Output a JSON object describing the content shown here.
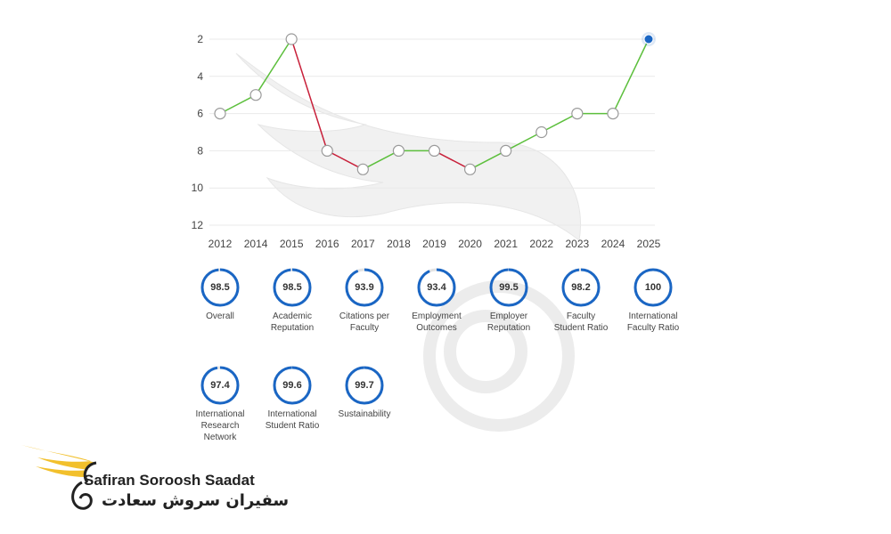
{
  "chart_data": {
    "type": "line",
    "x": [
      "2012",
      "2014",
      "2015",
      "2016",
      "2017",
      "2018",
      "2019",
      "2020",
      "2021",
      "2022",
      "2023",
      "2024",
      "2025"
    ],
    "y": [
      6,
      5,
      2,
      8,
      9,
      8,
      8,
      9,
      8,
      7,
      6,
      6,
      2
    ],
    "y_axis_inverted": true,
    "yticks": [
      2,
      4,
      6,
      8,
      10,
      12
    ],
    "ylim": [
      2,
      12
    ],
    "grid": true,
    "colors": {
      "up": "#5cbf3c",
      "down": "#c8203a",
      "marker": "#9a9a9a",
      "current": "#1a66c4",
      "grid": "#e9e9e9"
    }
  },
  "scores": [
    {
      "value": "98.5",
      "label": [
        "Overall"
      ]
    },
    {
      "value": "98.5",
      "label": [
        "Academic",
        "Reputation"
      ]
    },
    {
      "value": "93.9",
      "label": [
        "Citations per",
        "Faculty"
      ]
    },
    {
      "value": "93.4",
      "label": [
        "Employment",
        "Outcomes"
      ]
    },
    {
      "value": "99.5",
      "label": [
        "Employer",
        "Reputation"
      ]
    },
    {
      "value": "98.2",
      "label": [
        "Faculty",
        "Student Ratio"
      ]
    },
    {
      "value": "100",
      "label": [
        "International",
        "Faculty Ratio"
      ]
    },
    {
      "value": "97.4",
      "label": [
        "International",
        "Research",
        "Network"
      ]
    },
    {
      "value": "99.6",
      "label": [
        "International",
        "Student Ratio"
      ]
    },
    {
      "value": "99.7",
      "label": [
        "Sustainability"
      ]
    }
  ],
  "gauge_color": "#1a66c4",
  "logo": {
    "name_en": "Safiran Soroosh Saadat",
    "name_fa": "سفیران سروش سعادت",
    "colors": {
      "wing": "#f2c02c",
      "text": "#222222"
    }
  }
}
